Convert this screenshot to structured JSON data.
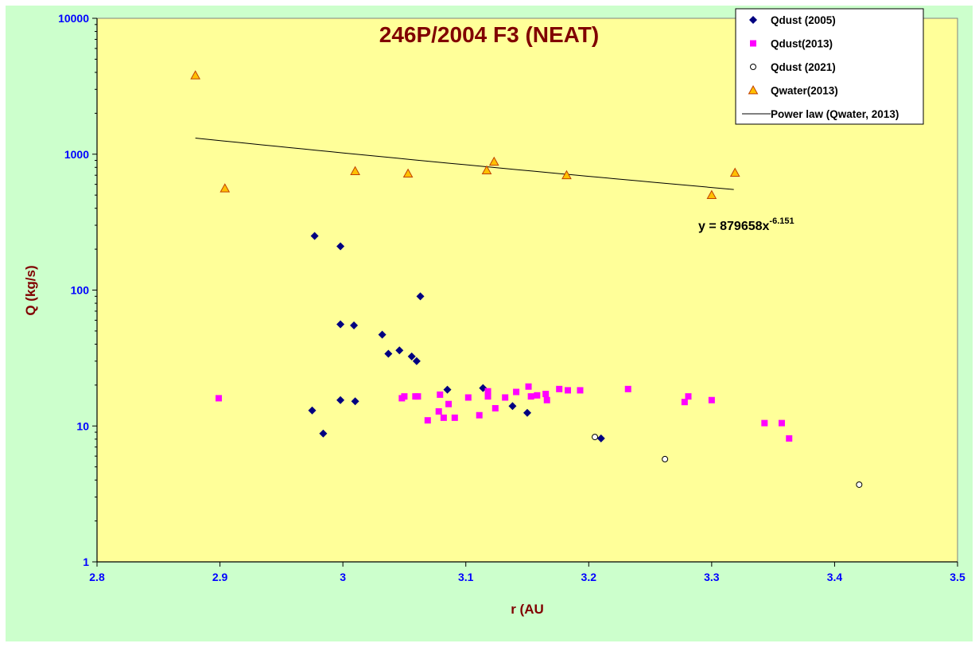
{
  "chart_data": {
    "type": "scatter",
    "title": "246P/2004 F3 (NEAT)",
    "xlabel": "r (AU",
    "ylabel": "Q (kg/s)",
    "xlim": [
      2.8,
      3.5
    ],
    "ylim": [
      1,
      10000
    ],
    "yscale": "log",
    "x_ticks": [
      "2.8",
      "2.9",
      "3",
      "3.1",
      "3.2",
      "3.3",
      "3.4",
      "3.5"
    ],
    "y_ticks": [
      "1",
      "10",
      "100",
      "1000",
      "10000"
    ],
    "grid": false,
    "legend_position": "top-right",
    "annotation": {
      "text": "y = 879658x",
      "superscript": "-6.151"
    },
    "colors": {
      "outer_background": "#ccffcc",
      "plot_background": "#ffff99",
      "title": "#800000",
      "axis_label": "#800000",
      "tick_label": "#0000ff",
      "qdust2005": "#000080",
      "qdust2013": "#ff00ff",
      "qwater_fill": "#ffc000",
      "qwater_stroke": "#c04000"
    },
    "series": [
      {
        "name": "Qdust (2005)",
        "marker": "diamond",
        "points": [
          [
            2.977,
            250
          ],
          [
            2.998,
            210
          ],
          [
            2.998,
            56
          ],
          [
            3.009,
            55
          ],
          [
            3.032,
            47
          ],
          [
            3.037,
            34
          ],
          [
            3.046,
            36
          ],
          [
            3.056,
            32.5
          ],
          [
            3.06,
            30
          ],
          [
            3.063,
            90
          ],
          [
            3.085,
            18.5
          ],
          [
            3.114,
            19
          ],
          [
            3.138,
            14
          ],
          [
            3.15,
            12.5
          ],
          [
            2.975,
            13
          ],
          [
            2.984,
            8.8
          ],
          [
            2.998,
            15.5
          ],
          [
            3.01,
            15.2
          ],
          [
            3.21,
            8.1
          ]
        ]
      },
      {
        "name": "Qdust(2013)",
        "marker": "square",
        "points": [
          [
            2.899,
            16
          ],
          [
            3.048,
            16
          ],
          [
            3.05,
            16.5
          ],
          [
            3.059,
            16.5
          ],
          [
            3.061,
            16.5
          ],
          [
            3.069,
            11
          ],
          [
            3.078,
            12.8
          ],
          [
            3.079,
            17
          ],
          [
            3.082,
            11.5
          ],
          [
            3.086,
            14.5
          ],
          [
            3.091,
            11.5
          ],
          [
            3.102,
            16.2
          ],
          [
            3.111,
            12
          ],
          [
            3.118,
            16.5
          ],
          [
            3.118,
            18
          ],
          [
            3.124,
            13.5
          ],
          [
            3.132,
            16.2
          ],
          [
            3.141,
            17.8
          ],
          [
            3.151,
            19.5
          ],
          [
            3.153,
            16.5
          ],
          [
            3.158,
            16.8
          ],
          [
            3.165,
            17.2
          ],
          [
            3.166,
            15.5
          ],
          [
            3.176,
            18.7
          ],
          [
            3.183,
            18.3
          ],
          [
            3.193,
            18.3
          ],
          [
            3.232,
            18.7
          ],
          [
            3.278,
            15
          ],
          [
            3.281,
            16.5
          ],
          [
            3.3,
            15.5
          ],
          [
            3.343,
            10.5
          ],
          [
            3.357,
            10.5
          ],
          [
            3.363,
            8.1
          ]
        ]
      },
      {
        "name": "Qdust (2021)",
        "marker": "circle",
        "points": [
          [
            3.205,
            8.3
          ],
          [
            3.262,
            5.7
          ],
          [
            3.42,
            3.7
          ]
        ]
      },
      {
        "name": "Qwater(2013)",
        "marker": "triangle",
        "points": [
          [
            2.88,
            3800
          ],
          [
            2.904,
            560
          ],
          [
            3.01,
            750
          ],
          [
            3.053,
            720
          ],
          [
            3.117,
            760
          ],
          [
            3.123,
            880
          ],
          [
            3.182,
            700
          ],
          [
            3.3,
            500
          ],
          [
            3.319,
            730
          ]
        ]
      },
      {
        "name": "Power law (Qwater, 2013)",
        "marker": "line",
        "coefficient": 879658,
        "exponent": -6.151,
        "x_range": [
          2.88,
          3.318
        ]
      }
    ]
  }
}
